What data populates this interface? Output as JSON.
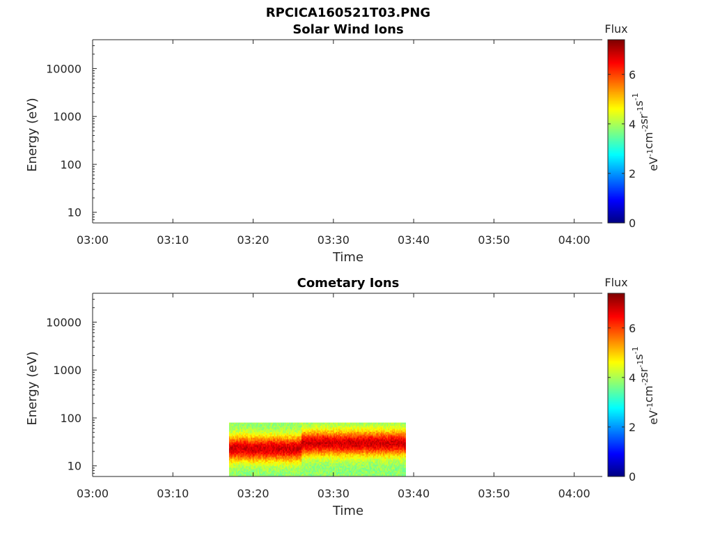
{
  "figure_title": "RPCICA160521T03.PNG",
  "colors": {
    "axis": "#262626",
    "background": "#ffffff"
  },
  "chart_data": [
    {
      "type": "heatmap",
      "title": "Solar Wind Ions",
      "xlabel": "Time",
      "ylabel": "Energy (eV)",
      "x_ticks": [
        "03:00",
        "03:10",
        "03:20",
        "03:30",
        "03:40",
        "03:50",
        "04:00"
      ],
      "x_range_minutes": [
        0,
        63.5
      ],
      "y_scale": "log",
      "y_ticks": [
        10,
        100,
        1000,
        10000
      ],
      "y_tick_labels": [
        "10",
        "100",
        "1000",
        "10000"
      ],
      "y_range": [
        6,
        40000
      ],
      "colorbar": {
        "title": "Flux",
        "label": "eV-1cm-2sr-1s-1",
        "range": [
          0,
          7.4
        ],
        "ticks": [
          0,
          2,
          4,
          6
        ],
        "colormap": "jet"
      },
      "data": []
    },
    {
      "type": "heatmap",
      "title": "Cometary Ions",
      "xlabel": "Time",
      "ylabel": "Energy (eV)",
      "x_ticks": [
        "03:00",
        "03:10",
        "03:20",
        "03:30",
        "03:40",
        "03:50",
        "04:00"
      ],
      "x_range_minutes": [
        0,
        63.5
      ],
      "y_scale": "log",
      "y_ticks": [
        10,
        100,
        1000,
        10000
      ],
      "y_tick_labels": [
        "10",
        "100",
        "1000",
        "10000"
      ],
      "y_range": [
        6,
        40000
      ],
      "colorbar": {
        "title": "Flux",
        "label": "eV-1cm-2sr-1s-1",
        "range": [
          0,
          7.4
        ],
        "ticks": [
          0,
          2,
          4,
          6
        ],
        "colormap": "jet"
      },
      "data": {
        "time_start": "03:17",
        "time_end": "03:39",
        "energy_min": 6,
        "energy_max": 80,
        "peak_energy_before_03_26": 23,
        "peak_energy_after_03_26": 30,
        "peak_flux": 6.8,
        "edge_flux": 3.8
      }
    }
  ]
}
